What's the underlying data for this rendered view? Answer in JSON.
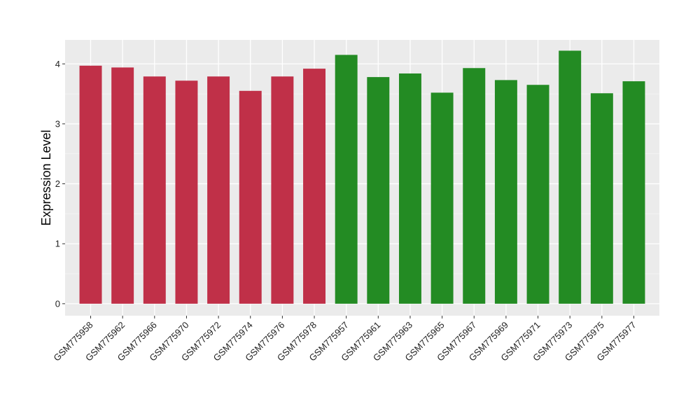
{
  "chart_data": {
    "type": "bar",
    "title": "",
    "xlabel": "",
    "ylabel": "Expression Level",
    "ylim": [
      -0.2,
      4.4
    ],
    "yticks": [
      0,
      1,
      2,
      3,
      4
    ],
    "grid": true,
    "categories": [
      "GSM775958",
      "GSM775962",
      "GSM775966",
      "GSM775970",
      "GSM775972",
      "GSM775974",
      "GSM775976",
      "GSM775978",
      "GSM775957",
      "GSM775961",
      "GSM775963",
      "GSM775965",
      "GSM775967",
      "GSM775969",
      "GSM775971",
      "GSM775973",
      "GSM775975",
      "GSM775977"
    ],
    "values": [
      3.97,
      3.94,
      3.79,
      3.72,
      3.79,
      3.55,
      3.79,
      3.92,
      4.15,
      3.78,
      3.84,
      3.52,
      3.93,
      3.73,
      3.65,
      4.22,
      3.51,
      3.71
    ],
    "groups": [
      "red",
      "red",
      "red",
      "red",
      "red",
      "red",
      "red",
      "red",
      "green",
      "green",
      "green",
      "green",
      "green",
      "green",
      "green",
      "green",
      "green",
      "green"
    ],
    "colors": {
      "red": "#C03048",
      "green": "#238B23",
      "panel": "#EBEBEB",
      "grid_major": "#FFFFFF",
      "grid_minor": "#F5F5F5"
    }
  }
}
